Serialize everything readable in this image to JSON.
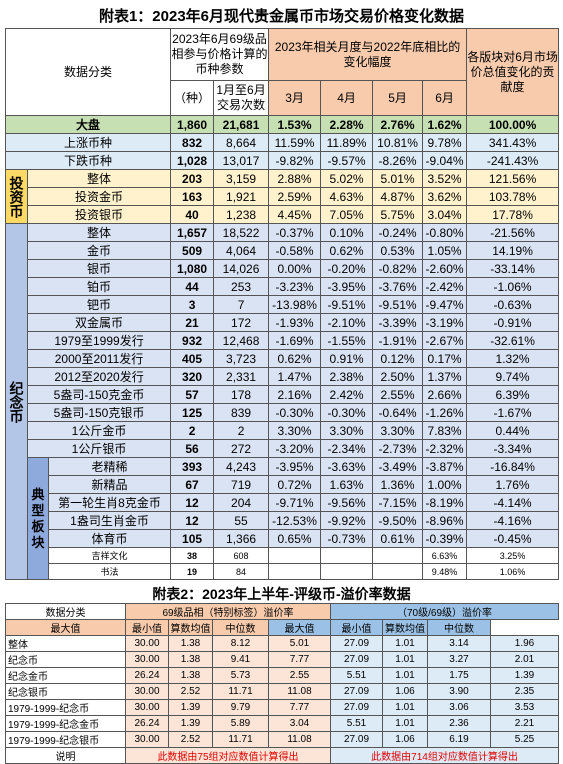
{
  "table1": {
    "title": "附表1：2023年6月现代贵金属币市场交易价格变化数据",
    "header": {
      "category": "数据分类",
      "params": "2023年6月69级品相参与价格计算的币种参数",
      "count": "（种）",
      "trades": "1月至6月交易次数",
      "change": "2023年相关月度与2022年底相比的变化幅度",
      "months": [
        "3月",
        "4月",
        "5月",
        "6月"
      ],
      "contribution": "各版块对6月市场价总值变化的贡献度"
    },
    "top_rows": [
      {
        "name": "大盘",
        "values": [
          "1,860",
          "21,681",
          "1.53%",
          "2.28%",
          "2.76%",
          "1.62%",
          "100.00%"
        ]
      },
      {
        "name": "上涨币种",
        "values": [
          "832",
          "8,664",
          "11.59%",
          "11.89%",
          "10.81%",
          "9.78%",
          "341.43%"
        ]
      },
      {
        "name": "下跌币种",
        "values": [
          "1,028",
          "13,017",
          "-9.82%",
          "-9.57%",
          "-8.26%",
          "-9.04%",
          "-241.43%"
        ]
      }
    ],
    "investment": {
      "label": "投资币",
      "rows": [
        {
          "name": "整体",
          "values": [
            "203",
            "3,159",
            "2.88%",
            "5.02%",
            "5.01%",
            "3.52%",
            "121.56%"
          ]
        },
        {
          "name": "投资金币",
          "values": [
            "163",
            "1,921",
            "2.59%",
            "4.63%",
            "4.87%",
            "3.62%",
            "103.78%"
          ]
        },
        {
          "name": "投资银币",
          "values": [
            "40",
            "1,238",
            "4.45%",
            "7.05%",
            "5.75%",
            "3.04%",
            "17.78%"
          ]
        }
      ]
    },
    "commemorative": {
      "label": "纪念币",
      "rows": [
        {
          "name": "整体",
          "values": [
            "1,657",
            "18,522",
            "-0.37%",
            "0.10%",
            "-0.24%",
            "-0.80%",
            "-21.56%"
          ]
        },
        {
          "name": "金币",
          "values": [
            "509",
            "4,064",
            "-0.58%",
            "0.62%",
            "0.53%",
            "1.05%",
            "14.19%"
          ]
        },
        {
          "name": "银币",
          "values": [
            "1,080",
            "14,026",
            "0.00%",
            "-0.20%",
            "-0.82%",
            "-2.60%",
            "-33.14%"
          ]
        },
        {
          "name": "铂币",
          "values": [
            "44",
            "253",
            "-3.23%",
            "-3.95%",
            "-3.76%",
            "-2.42%",
            "-1.06%"
          ]
        },
        {
          "name": "钯币",
          "values": [
            "3",
            "7",
            "-13.98%",
            "-9.51%",
            "-9.51%",
            "-9.47%",
            "-0.63%"
          ]
        },
        {
          "name": "双金属币",
          "values": [
            "21",
            "172",
            "-1.93%",
            "-2.10%",
            "-3.39%",
            "-3.19%",
            "-0.91%"
          ]
        },
        {
          "name": "1979至1999发行",
          "values": [
            "932",
            "12,468",
            "-1.69%",
            "-1.55%",
            "-1.91%",
            "-2.67%",
            "-32.61%"
          ]
        },
        {
          "name": "2000至2011发行",
          "values": [
            "405",
            "3,723",
            "0.62%",
            "0.91%",
            "0.12%",
            "0.17%",
            "1.32%"
          ]
        },
        {
          "name": "2012至2020发行",
          "values": [
            "320",
            "2,331",
            "1.47%",
            "2.38%",
            "2.50%",
            "1.37%",
            "9.74%"
          ]
        },
        {
          "name": "5盎司-150克金币",
          "values": [
            "57",
            "178",
            "2.16%",
            "2.42%",
            "2.55%",
            "2.66%",
            "6.39%"
          ]
        },
        {
          "name": "5盎司-150克银币",
          "values": [
            "125",
            "839",
            "-0.30%",
            "-0.30%",
            "-0.64%",
            "-1.26%",
            "-1.67%"
          ]
        },
        {
          "name": "1公斤金币",
          "values": [
            "2",
            "2",
            "3.30%",
            "3.30%",
            "3.30%",
            "7.83%",
            "0.44%"
          ]
        },
        {
          "name": "1公斤银币",
          "values": [
            "56",
            "272",
            "-3.20%",
            "-2.34%",
            "-2.73%",
            "-2.32%",
            "-3.34%"
          ]
        }
      ],
      "typical": {
        "label": "典型板块",
        "rows": [
          {
            "name": "老精稀",
            "values": [
              "393",
              "4,243",
              "-3.95%",
              "-3.63%",
              "-3.49%",
              "-3.87%",
              "-16.84%"
            ]
          },
          {
            "name": "新精品",
            "values": [
              "67",
              "719",
              "0.72%",
              "1.63%",
              "1.36%",
              "1.00%",
              "1.76%"
            ]
          },
          {
            "name": "第一轮生肖8克金币",
            "values": [
              "12",
              "204",
              "-9.71%",
              "-9.56%",
              "-7.15%",
              "-8.19%",
              "-4.14%"
            ]
          },
          {
            "name": "1盎司生肖金币",
            "values": [
              "12",
              "55",
              "-12.53%",
              "-9.92%",
              "-9.50%",
              "-8.96%",
              "-4.16%"
            ]
          },
          {
            "name": "体育币",
            "values": [
              "105",
              "1,366",
              "0.65%",
              "-0.73%",
              "0.61%",
              "-0.39%",
              "-0.45%"
            ]
          },
          {
            "name": "吉祥文化",
            "values": [
              "38",
              "608",
              null,
              null,
              null,
              "6.63%",
              "3.25%"
            ]
          },
          {
            "name": "书法",
            "values": [
              "19",
              "84",
              null,
              null,
              null,
              "9.48%",
              "1.06%"
            ]
          }
        ]
      }
    }
  },
  "table2": {
    "title": "附表2：2023年上半年-评级币-溢价率数据",
    "header": {
      "category": "数据分类",
      "group_a": "69级品相（特别标签）溢价率",
      "group_b": "（70级/69级）溢价率",
      "columns": [
        "最大值",
        "最小值",
        "算数均值",
        "中位数",
        "最大值",
        "最小值",
        "算数均值",
        "中位数"
      ]
    },
    "rows": [
      {
        "name": "整体",
        "values": [
          "30.00",
          "1.38",
          "8.12",
          "5.01",
          "27.09",
          "1.01",
          "3.14",
          "1.96"
        ]
      },
      {
        "name": "纪念币",
        "values": [
          "30.00",
          "1.38",
          "9.41",
          "7.77",
          "27.09",
          "1.01",
          "3.27",
          "2.01"
        ]
      },
      {
        "name": "纪念金币",
        "values": [
          "26.24",
          "1.38",
          "5.73",
          "2.55",
          "5.51",
          "1.01",
          "1.75",
          "1.39"
        ]
      },
      {
        "name": "纪念银币",
        "values": [
          "30.00",
          "2.52",
          "11.71",
          "11.08",
          "27.09",
          "1.06",
          "3.90",
          "2.35"
        ]
      },
      {
        "name": "1979-1999-纪念币",
        "values": [
          "30.00",
          "1.39",
          "9.79",
          "7.77",
          "27.09",
          "1.01",
          "3.06",
          "3.53"
        ]
      },
      {
        "name": "1979-1999-纪念金币",
        "values": [
          "26.24",
          "1.39",
          "5.89",
          "3.04",
          "5.51",
          "1.01",
          "2.36",
          "2.21"
        ]
      },
      {
        "name": "1979-1999-纪念银币",
        "values": [
          "30.00",
          "2.52",
          "11.71",
          "11.08",
          "27.09",
          "1.06",
          "6.19",
          "5.25"
        ]
      }
    ],
    "note": {
      "name": "说明",
      "a": "此数据由75组对应数值计算得出",
      "b": "此数据由714组对应数值计算得出"
    }
  }
}
